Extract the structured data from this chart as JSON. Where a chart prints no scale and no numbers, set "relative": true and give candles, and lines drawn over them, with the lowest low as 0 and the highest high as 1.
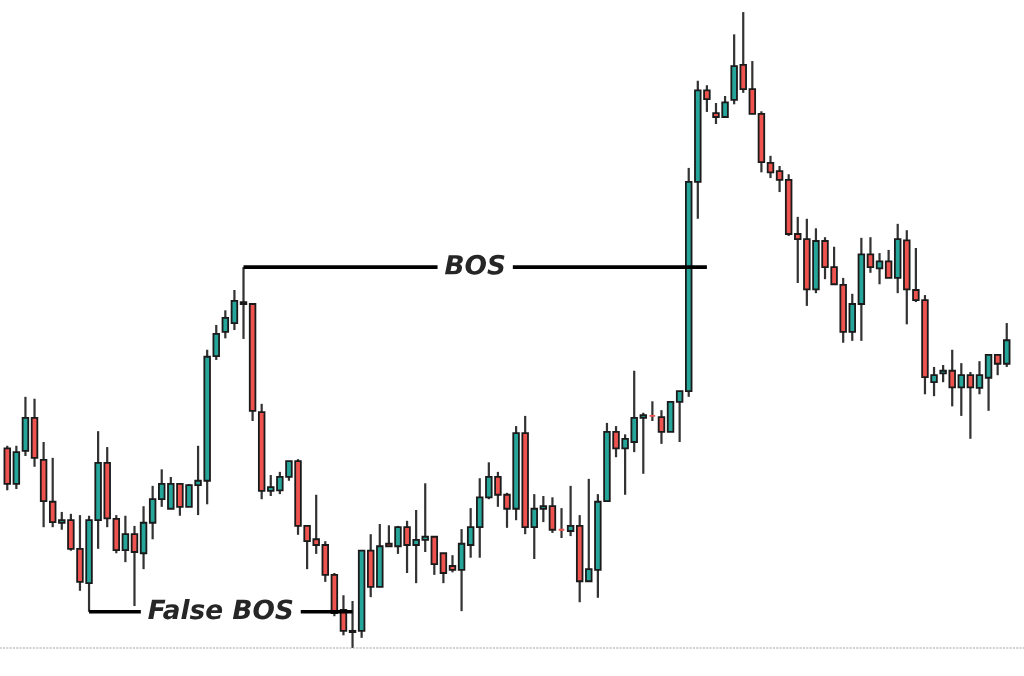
{
  "chart_data": {
    "type": "candlestick",
    "relative": true,
    "categories": [
      null,
      null,
      null,
      null,
      null,
      null,
      null,
      null,
      null,
      null,
      null,
      null,
      null,
      null,
      null,
      null,
      null,
      null,
      null,
      null,
      null,
      null,
      null,
      null,
      null,
      null,
      null,
      null,
      null,
      null,
      null,
      null,
      null,
      null,
      null,
      null,
      null,
      null,
      null,
      null,
      null,
      null,
      null,
      null,
      null,
      null,
      null,
      null,
      null,
      null,
      null,
      null,
      null,
      null,
      null,
      null,
      null,
      null,
      null,
      null,
      null,
      null,
      null,
      null,
      null,
      null,
      null,
      null,
      null,
      null,
      null,
      null,
      null,
      null,
      null,
      null,
      null,
      null,
      null,
      null,
      null,
      null,
      null,
      null,
      null,
      null,
      null,
      null,
      null,
      null,
      null,
      null,
      null,
      null,
      null,
      null,
      null,
      null,
      null,
      null,
      null,
      null,
      null,
      null,
      null,
      null,
      null,
      null,
      null,
      null,
      null
    ],
    "colors": [
      "#ef5350",
      "#26a69a",
      "#26a69a",
      "#ef5350",
      "#ef5350",
      "#ef5350",
      "#26a69a",
      "#ef5350",
      "#ef5350",
      "#26a69a",
      "#26a69a",
      "#ef5350",
      "#ef5350",
      "#26a69a",
      "#ef5350",
      "#26a69a",
      "#26a69a",
      "#26a69a",
      "#26a69a",
      "#ef5350",
      "#26a69a",
      "#26a69a",
      "#26a69a",
      "#26a69a",
      "#26a69a",
      "#26a69a",
      "#ef5350",
      "#ef5350",
      "#ef5350",
      "#26a69a",
      "#26a69a",
      "#26a69a",
      "#ef5350",
      "#ef5350",
      "#ef5350",
      "#ef5350",
      "#ef5350",
      "#ef5350",
      "#ef5350",
      "#26a69a",
      "#ef5350",
      "#26a69a",
      "#ef5350",
      "#26a69a",
      "#ef5350",
      "#26a69a",
      "#26a69a",
      "#ef5350",
      "#ef5350",
      "#ef5350",
      "#26a69a",
      "#26a69a",
      "#26a69a",
      "#26a69a",
      "#ef5350",
      "#ef5350",
      "#26a69a",
      "#ef5350",
      "#26a69a",
      "#26a69a",
      "#ef5350",
      "#ef5350",
      "#26a69a",
      "#ef5350",
      "#26a69a",
      "#26a69a",
      "#26a69a",
      "#ef5350",
      "#26a69a",
      "#26a69a",
      "#26a69a",
      "#ef5350",
      "#ef5350",
      "#26a69a",
      "#26a69a",
      "#26a69a",
      "#26a69a",
      "#ef5350",
      "#ef5350",
      "#26a69a",
      "#26a69a",
      "#ef5350",
      "#ef5350",
      "#ef5350",
      "#ef5350",
      "#ef5350",
      "#ef5350",
      "#ef5350",
      "#ef5350",
      "#26a69a",
      "#ef5350",
      "#ef5350",
      "#ef5350",
      "#26a69a",
      "#26a69a",
      "#ef5350",
      "#26a69a",
      "#ef5350",
      "#26a69a",
      "#ef5350",
      "#ef5350",
      "#ef5350",
      "#26a69a",
      "#26a69a",
      "#ef5350",
      "#26a69a",
      "#ef5350",
      "#26a69a",
      "#26a69a",
      "#ef5350",
      "#26a69a"
    ],
    "ohlc": [
      [
        0.314,
        0.318,
        0.248,
        0.258
      ],
      [
        0.258,
        0.318,
        0.25,
        0.308
      ],
      [
        0.31,
        0.395,
        0.302,
        0.362
      ],
      [
        0.362,
        0.392,
        0.285,
        0.299
      ],
      [
        0.296,
        0.324,
        0.19,
        0.231
      ],
      [
        0.23,
        0.299,
        0.19,
        0.198
      ],
      [
        0.197,
        0.214,
        0.186,
        0.201
      ],
      [
        0.201,
        0.211,
        0.153,
        0.156
      ],
      [
        0.156,
        0.209,
        0.09,
        0.104
      ],
      [
        0.102,
        0.208,
        0.057,
        0.201
      ],
      [
        0.201,
        0.341,
        0.156,
        0.291
      ],
      [
        0.291,
        0.316,
        0.19,
        0.204
      ],
      [
        0.203,
        0.209,
        0.149,
        0.154
      ],
      [
        0.154,
        0.208,
        0.135,
        0.179
      ],
      [
        0.179,
        0.192,
        0.066,
        0.151
      ],
      [
        0.149,
        0.223,
        0.124,
        0.197
      ],
      [
        0.197,
        0.255,
        0.171,
        0.234
      ],
      [
        0.234,
        0.281,
        0.222,
        0.258
      ],
      [
        0.219,
        0.269,
        0.219,
        0.258
      ],
      [
        0.258,
        0.258,
        0.208,
        0.222
      ],
      [
        0.222,
        0.258,
        0.222,
        0.256
      ],
      [
        0.256,
        0.318,
        0.209,
        0.263
      ],
      [
        0.263,
        0.469,
        0.226,
        0.458
      ],
      [
        0.459,
        0.508,
        0.453,
        0.494
      ],
      [
        0.497,
        0.531,
        0.487,
        0.519
      ],
      [
        0.511,
        0.563,
        0.5,
        0.546
      ],
      [
        0.544,
        0.599,
        0.486,
        0.541
      ],
      [
        0.541,
        0.541,
        0.357,
        0.373
      ],
      [
        0.371,
        0.384,
        0.234,
        0.247
      ],
      [
        0.247,
        0.272,
        0.239,
        0.253
      ],
      [
        0.248,
        0.277,
        0.242,
        0.269
      ],
      [
        0.269,
        0.294,
        0.263,
        0.294
      ],
      [
        0.294,
        0.297,
        0.178,
        0.192
      ],
      [
        0.192,
        0.193,
        0.124,
        0.168
      ],
      [
        0.171,
        0.241,
        0.148,
        0.162
      ],
      [
        0.162,
        0.168,
        0.104,
        0.115
      ],
      [
        0.115,
        0.118,
        0.05,
        0.055
      ],
      [
        0.06,
        0.083,
        0.02,
        0.027
      ],
      [
        0.027,
        0.074,
        0.0,
        0.025
      ],
      [
        0.027,
        0.153,
        0.016,
        0.153
      ],
      [
        0.153,
        0.179,
        0.08,
        0.096
      ],
      [
        0.096,
        0.195,
        0.096,
        0.16
      ],
      [
        0.164,
        0.193,
        0.159,
        0.16
      ],
      [
        0.16,
        0.192,
        0.148,
        0.19
      ],
      [
        0.19,
        0.2,
        0.118,
        0.162
      ],
      [
        0.162,
        0.217,
        0.102,
        0.17
      ],
      [
        0.17,
        0.259,
        0.151,
        0.175
      ],
      [
        0.175,
        0.175,
        0.115,
        0.132
      ],
      [
        0.149,
        0.149,
        0.102,
        0.118
      ],
      [
        0.129,
        0.146,
        0.119,
        0.123
      ],
      [
        0.123,
        0.187,
        0.058,
        0.164
      ],
      [
        0.162,
        0.22,
        0.142,
        0.19
      ],
      [
        0.19,
        0.267,
        0.142,
        0.237
      ],
      [
        0.237,
        0.292,
        0.234,
        0.269
      ],
      [
        0.269,
        0.277,
        0.222,
        0.241
      ],
      [
        0.241,
        0.244,
        0.189,
        0.219
      ],
      [
        0.219,
        0.349,
        0.201,
        0.338
      ],
      [
        0.338,
        0.365,
        0.179,
        0.19
      ],
      [
        0.19,
        0.242,
        0.14,
        0.219
      ],
      [
        0.219,
        0.239,
        0.198,
        0.223
      ],
      [
        0.223,
        0.237,
        0.181,
        0.186
      ],
      [
        0.186,
        0.22,
        0.173,
        0.186
      ],
      [
        0.184,
        0.255,
        0.176,
        0.192
      ],
      [
        0.192,
        0.209,
        0.072,
        0.105
      ],
      [
        0.105,
        0.266,
        0.105,
        0.124
      ],
      [
        0.123,
        0.242,
        0.079,
        0.23
      ],
      [
        0.231,
        0.354,
        0.231,
        0.34
      ],
      [
        0.34,
        0.349,
        0.3,
        0.314
      ],
      [
        0.314,
        0.336,
        0.241,
        0.329
      ],
      [
        0.324,
        0.436,
        0.308,
        0.362
      ],
      [
        0.362,
        0.37,
        0.274,
        0.366
      ],
      [
        0.365,
        0.388,
        0.357,
        0.365
      ],
      [
        0.363,
        0.374,
        0.321,
        0.34
      ],
      [
        0.34,
        0.388,
        0.34,
        0.387
      ],
      [
        0.387,
        0.404,
        0.324,
        0.404
      ],
      [
        0.404,
        0.755,
        0.395,
        0.733
      ],
      [
        0.733,
        0.892,
        0.675,
        0.877
      ],
      [
        0.877,
        0.885,
        0.843,
        0.863
      ],
      [
        0.841,
        0.857,
        0.824,
        0.835
      ],
      [
        0.835,
        0.868,
        0.835,
        0.858
      ],
      [
        0.862,
        0.965,
        0.855,
        0.915
      ],
      [
        0.917,
        1.0,
        0.873,
        0.879
      ],
      [
        0.879,
        0.923,
        0.84,
        0.84
      ],
      [
        0.84,
        0.844,
        0.748,
        0.764
      ],
      [
        0.763,
        0.774,
        0.739,
        0.748
      ],
      [
        0.75,
        0.758,
        0.717,
        0.736
      ],
      [
        0.736,
        0.745,
        0.648,
        0.651
      ],
      [
        0.651,
        0.678,
        0.574,
        0.643
      ],
      [
        0.643,
        0.675,
        0.538,
        0.564
      ],
      [
        0.564,
        0.66,
        0.558,
        0.64
      ],
      [
        0.64,
        0.646,
        0.58,
        0.599
      ],
      [
        0.599,
        0.631,
        0.571,
        0.572
      ],
      [
        0.571,
        0.582,
        0.48,
        0.497
      ],
      [
        0.497,
        0.557,
        0.483,
        0.541
      ],
      [
        0.541,
        0.645,
        0.483,
        0.619
      ],
      [
        0.619,
        0.646,
        0.59,
        0.599
      ],
      [
        0.597,
        0.621,
        0.572,
        0.608
      ],
      [
        0.608,
        0.626,
        0.582,
        0.582
      ],
      [
        0.582,
        0.667,
        0.558,
        0.643
      ],
      [
        0.641,
        0.657,
        0.509,
        0.564
      ],
      [
        0.563,
        0.629,
        0.544,
        0.547
      ],
      [
        0.547,
        0.555,
        0.399,
        0.426
      ],
      [
        0.418,
        0.442,
        0.396,
        0.429
      ],
      [
        0.432,
        0.445,
        0.418,
        0.436
      ],
      [
        0.436,
        0.469,
        0.38,
        0.41
      ],
      [
        0.41,
        0.448,
        0.365,
        0.429
      ],
      [
        0.429,
        0.434,
        0.329,
        0.41
      ],
      [
        0.409,
        0.451,
        0.399,
        0.429
      ],
      [
        0.425,
        0.462,
        0.373,
        0.461
      ],
      [
        0.461,
        0.462,
        0.429,
        0.447
      ],
      [
        0.447,
        0.511,
        0.442,
        0.484
      ]
    ],
    "ref_lines": [
      {
        "axis": "y",
        "value": 0.599,
        "label": "BOS"
      },
      {
        "axis": "y",
        "value": 0.057,
        "label": "False BOS"
      }
    ]
  }
}
